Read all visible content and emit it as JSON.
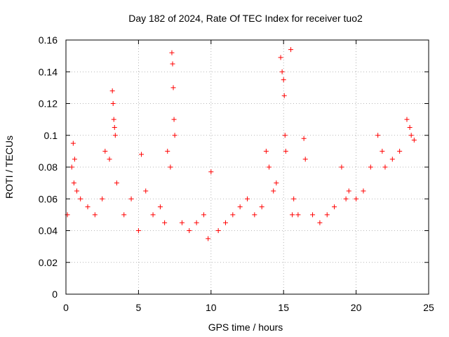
{
  "chart_data": {
    "type": "scatter",
    "title": "Day 182 of 2024, Rate Of TEC Index for receiver tuo2",
    "xlabel": "GPS time / hours",
    "ylabel": "ROTI / TECUs",
    "xlim": [
      0,
      25
    ],
    "ylim": [
      0,
      0.16
    ],
    "xticks": [
      0,
      5,
      10,
      15,
      20,
      25
    ],
    "xtick_labels": [
      "0",
      "5",
      "10",
      "15",
      "20",
      "25"
    ],
    "yticks": [
      0,
      0.02,
      0.04,
      0.06,
      0.08,
      0.1,
      0.12,
      0.14,
      0.16
    ],
    "ytick_labels": [
      "0",
      "0.02",
      "0.04",
      "0.06",
      "0.08",
      "0.1",
      "0.12",
      "0.14",
      "0.16"
    ],
    "grid": true,
    "marker": "plus",
    "color": "#ff0000",
    "series": [
      {
        "x": [
          0.1,
          0.4,
          0.5,
          0.55,
          0.6,
          0.75,
          1.0,
          1.5,
          2.0,
          2.5,
          2.7,
          3.0,
          3.2,
          3.25,
          3.3,
          3.35,
          3.4,
          3.5,
          4.0,
          4.5,
          5.0,
          5.2,
          5.5,
          6.0,
          6.5,
          6.8,
          7.0,
          7.2,
          7.3,
          7.35,
          7.4,
          7.45,
          7.5,
          8.0,
          8.5,
          9.0,
          9.5,
          9.8,
          10.0,
          10.5,
          11.0,
          11.5,
          12.0,
          12.5,
          13.0,
          13.5,
          13.8,
          14.0,
          14.3,
          14.5,
          14.8,
          14.9,
          15.0,
          15.05,
          15.1,
          15.15,
          15.5,
          15.6,
          15.7,
          16.0,
          16.4,
          16.5,
          17.0,
          17.5,
          18.0,
          18.5,
          19.0,
          19.3,
          19.5,
          20.0,
          20.5,
          21.0,
          21.5,
          21.8,
          22.0,
          22.5,
          23.0,
          23.5,
          23.7,
          23.8,
          24.0
        ],
        "y": [
          0.05,
          0.08,
          0.095,
          0.07,
          0.085,
          0.065,
          0.06,
          0.055,
          0.05,
          0.06,
          0.09,
          0.085,
          0.128,
          0.12,
          0.11,
          0.105,
          0.1,
          0.07,
          0.05,
          0.06,
          0.04,
          0.088,
          0.065,
          0.05,
          0.055,
          0.045,
          0.09,
          0.08,
          0.152,
          0.145,
          0.13,
          0.11,
          0.1,
          0.045,
          0.04,
          0.045,
          0.05,
          0.035,
          0.077,
          0.04,
          0.045,
          0.05,
          0.055,
          0.06,
          0.05,
          0.055,
          0.09,
          0.08,
          0.065,
          0.07,
          0.149,
          0.14,
          0.135,
          0.125,
          0.1,
          0.09,
          0.154,
          0.05,
          0.06,
          0.05,
          0.098,
          0.085,
          0.05,
          0.045,
          0.05,
          0.055,
          0.08,
          0.06,
          0.065,
          0.06,
          0.065,
          0.08,
          0.1,
          0.09,
          0.08,
          0.085,
          0.09,
          0.11,
          0.105,
          0.1,
          0.097
        ]
      }
    ]
  }
}
